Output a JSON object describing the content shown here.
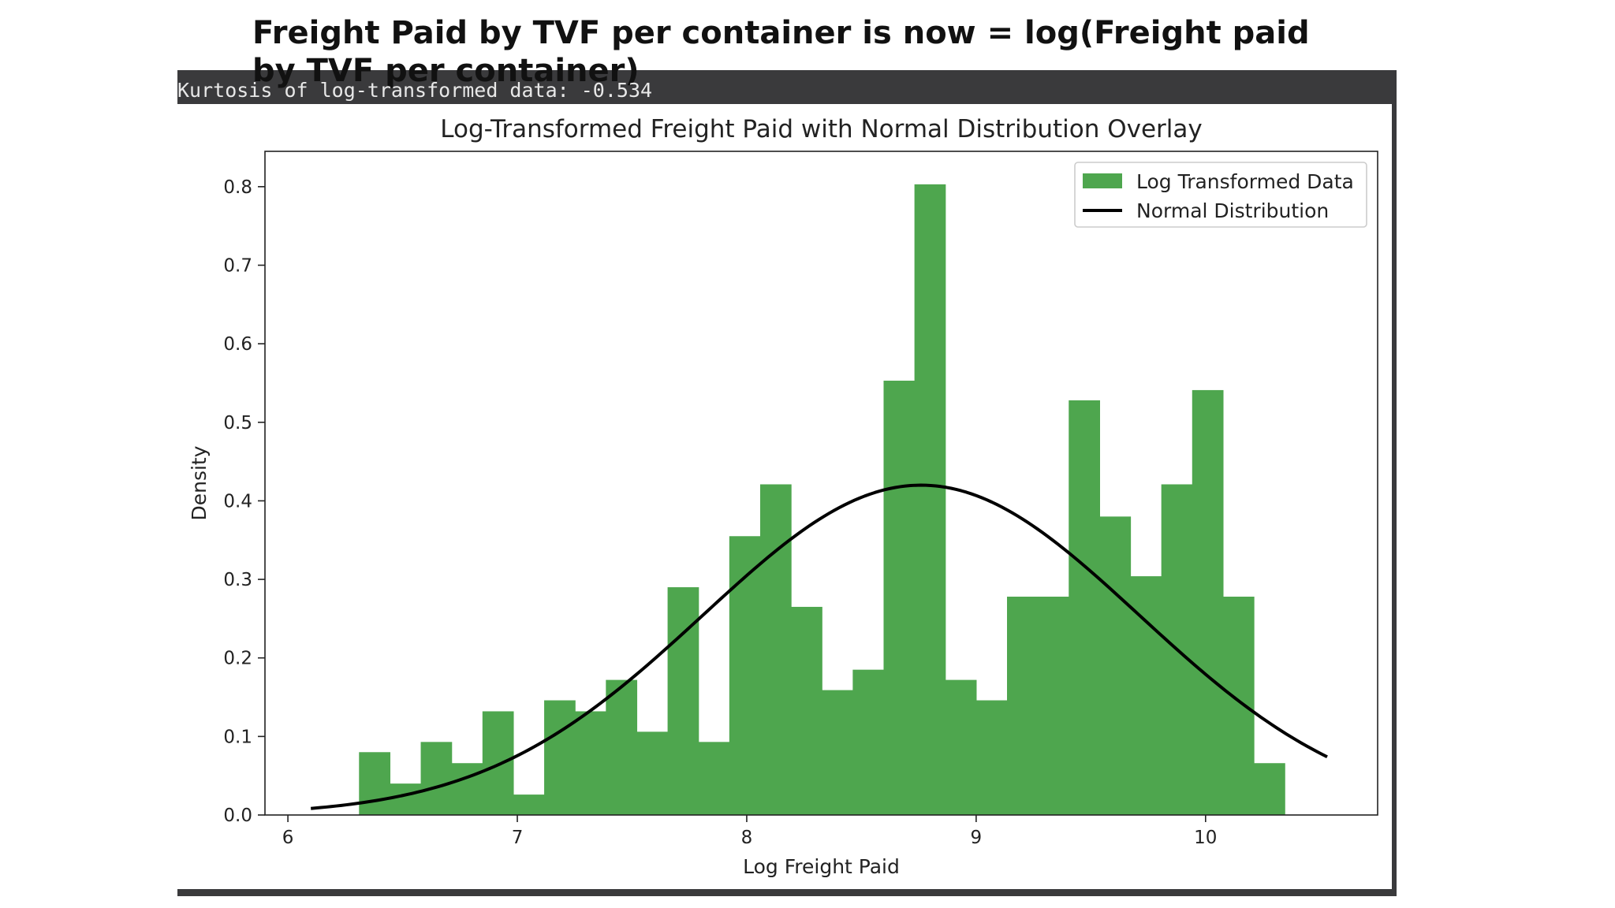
{
  "heading": {
    "prefix": "Freight Paid by TVF per container is now = ",
    "bold": "log(Freight paid by TVF per container)"
  },
  "console": {
    "output": "Kurtosis of log-transformed data: -0.534"
  },
  "colors": {
    "bar": "#4ea64e",
    "curve": "#000000",
    "frame": "#3a3a3c"
  },
  "chart_data": {
    "type": "bar",
    "title": "Log-Transformed Freight Paid with Normal Distribution Overlay",
    "xlabel": "Log Freight Paid",
    "ylabel": "Density",
    "xlim": [
      5.9,
      10.75
    ],
    "ylim": [
      0.0,
      0.845
    ],
    "xticks": [
      6,
      7,
      8,
      9,
      10
    ],
    "yticks": [
      0.0,
      0.1,
      0.2,
      0.3,
      0.4,
      0.5,
      0.6,
      0.7,
      0.8
    ],
    "grid": false,
    "legend_position": "top-right",
    "bin_start": 6.31,
    "bin_width": 0.1345,
    "series": [
      {
        "name": "Log Transformed Data",
        "kind": "histogram",
        "values": [
          0.08,
          0.04,
          0.093,
          0.066,
          0.132,
          0.026,
          0.146,
          0.132,
          0.172,
          0.106,
          0.29,
          0.093,
          0.355,
          0.421,
          0.265,
          0.159,
          0.185,
          0.553,
          0.803,
          0.172,
          0.146,
          0.278,
          0.278,
          0.528,
          0.38,
          0.304,
          0.421,
          0.541,
          0.278,
          0.066
        ]
      },
      {
        "name": "Normal Distribution",
        "kind": "normal-pdf",
        "mean": 8.76,
        "std": 0.95,
        "x_range": [
          6.1,
          10.53
        ]
      }
    ]
  }
}
